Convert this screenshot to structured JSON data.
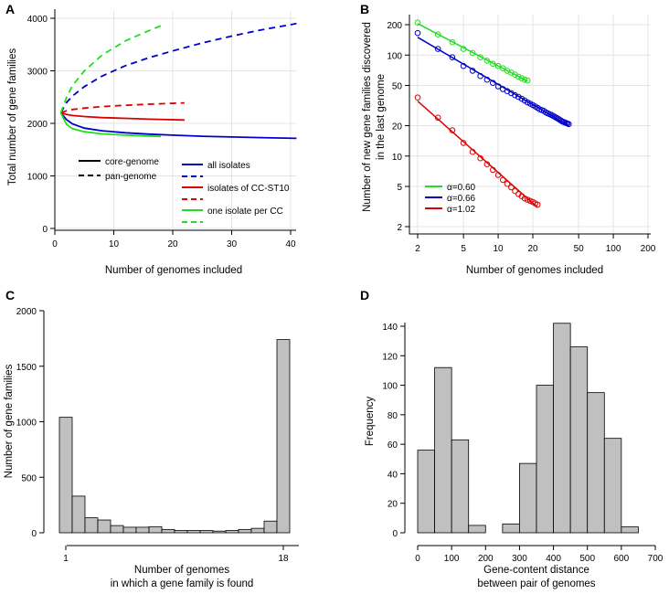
{
  "colors": {
    "all": "#0000cc",
    "cc_st10": "#dd0000",
    "one_per_cc": "#22dd22",
    "black": "#000000"
  },
  "panels": {
    "a": "A",
    "b": "B",
    "c": "C",
    "d": "D"
  },
  "chart_data": [
    {
      "id": "A",
      "type": "line",
      "xlabel": "Number of genomes included",
      "ylabel": "Total number of gene families",
      "xlim": [
        0,
        41
      ],
      "ylim": [
        0,
        4000
      ],
      "xticks": [
        0,
        10,
        20,
        30,
        40
      ],
      "yticks": [
        0,
        1000,
        2000,
        3000,
        4000
      ],
      "grid": true,
      "legend": {
        "style_labels": [
          "core-genome",
          "pan-genome"
        ],
        "color_labels": [
          "all isolates",
          "isolates of CC-ST10",
          "one isolate per CC"
        ]
      },
      "series": [
        {
          "name": "all isolates core-genome",
          "group": "all",
          "kind": "core",
          "x": [
            1,
            2,
            3,
            5,
            8,
            12,
            16,
            20,
            25,
            30,
            35,
            41
          ],
          "y": [
            2200,
            2070,
            1990,
            1910,
            1860,
            1820,
            1795,
            1775,
            1755,
            1740,
            1728,
            1715
          ]
        },
        {
          "name": "all isolates pan-genome",
          "group": "all",
          "kind": "pan",
          "x": [
            1,
            2,
            3,
            5,
            8,
            12,
            16,
            20,
            25,
            30,
            35,
            41
          ],
          "y": [
            2200,
            2400,
            2520,
            2700,
            2900,
            3100,
            3250,
            3380,
            3530,
            3660,
            3780,
            3900
          ]
        },
        {
          "name": "isolates of CC-ST10 core-genome",
          "group": "cc_st10",
          "kind": "core",
          "x": [
            1,
            2,
            3,
            5,
            8,
            12,
            16,
            22
          ],
          "y": [
            2200,
            2170,
            2150,
            2130,
            2110,
            2095,
            2080,
            2065
          ]
        },
        {
          "name": "isolates of CC-ST10 pan-genome",
          "group": "cc_st10",
          "kind": "pan",
          "x": [
            1,
            2,
            3,
            5,
            8,
            12,
            16,
            22
          ],
          "y": [
            2200,
            2240,
            2265,
            2290,
            2320,
            2345,
            2365,
            2390
          ]
        },
        {
          "name": "one isolate per CC core-genome",
          "group": "one_per_cc",
          "kind": "core",
          "x": [
            1,
            2,
            3,
            5,
            8,
            12,
            15,
            18
          ],
          "y": [
            2200,
            1980,
            1900,
            1840,
            1800,
            1775,
            1762,
            1750
          ]
        },
        {
          "name": "one isolate per CC pan-genome",
          "group": "one_per_cc",
          "kind": "pan",
          "x": [
            1,
            2,
            3,
            5,
            8,
            12,
            15,
            18
          ],
          "y": [
            2200,
            2500,
            2720,
            3000,
            3300,
            3570,
            3720,
            3860
          ]
        }
      ]
    },
    {
      "id": "B",
      "type": "scatter",
      "scale": "log-log",
      "xlabel": "Number of genomes included",
      "ylabel_line1": "Number of new gene families discovered",
      "ylabel_line2": "in the last genome",
      "xlim": [
        2,
        200
      ],
      "ylim": [
        2,
        200
      ],
      "xticks": [
        2,
        5,
        10,
        20,
        50,
        100,
        200
      ],
      "yticks": [
        2,
        5,
        10,
        20,
        50,
        100,
        200
      ],
      "grid": true,
      "legend": [
        "α=0.60",
        "α=0.66",
        "α=1.02"
      ],
      "series": [
        {
          "name": "α=0.60",
          "group": "one_per_cc",
          "alpha": 0.6,
          "n_max": 18,
          "fit": {
            "x": [
              2,
              18
            ],
            "y": [
              205,
              55
            ]
          },
          "points": [
            [
              2,
              210
            ],
            [
              3,
              160
            ],
            [
              4,
              134
            ],
            [
              5,
              115
            ],
            [
              6,
              105
            ],
            [
              7,
              95
            ],
            [
              8,
              88
            ],
            [
              9,
              82
            ],
            [
              10,
              78
            ],
            [
              11,
              74
            ],
            [
              12,
              70
            ],
            [
              13,
              67
            ],
            [
              14,
              64
            ],
            [
              15,
              61
            ],
            [
              16,
              59
            ],
            [
              17,
              57
            ],
            [
              18,
              56
            ]
          ]
        },
        {
          "name": "α=0.66",
          "group": "all",
          "alpha": 0.66,
          "n_max": 41,
          "fit": {
            "x": [
              2,
              41
            ],
            "y": [
              150,
              20
            ]
          },
          "points": [
            [
              2,
              165
            ],
            [
              3,
              115
            ],
            [
              4,
              95
            ],
            [
              5,
              78
            ],
            [
              6,
              70
            ],
            [
              7,
              62
            ],
            [
              8,
              57
            ],
            [
              9,
              53
            ],
            [
              10,
              49
            ],
            [
              11,
              46
            ],
            [
              12,
              44
            ],
            [
              13,
              42
            ],
            [
              14,
              40
            ],
            [
              15,
              38.5
            ],
            [
              16,
              37
            ],
            [
              17,
              35.5
            ],
            [
              18,
              34
            ],
            [
              19,
              33
            ],
            [
              20,
              32
            ],
            [
              21,
              31
            ],
            [
              22,
              30
            ],
            [
              23,
              29
            ],
            [
              24,
              28.5
            ],
            [
              25,
              28
            ],
            [
              26,
              27
            ],
            [
              27,
              26.5
            ],
            [
              28,
              26
            ],
            [
              29,
              25.5
            ],
            [
              30,
              25
            ],
            [
              31,
              24.5
            ],
            [
              32,
              24
            ],
            [
              33,
              23.5
            ],
            [
              34,
              23
            ],
            [
              35,
              22.5
            ],
            [
              36,
              22
            ],
            [
              37,
              21.8
            ],
            [
              38,
              21.5
            ],
            [
              39,
              21.2
            ],
            [
              40,
              21
            ],
            [
              41,
              20.7
            ]
          ]
        },
        {
          "name": "α=1.02",
          "group": "cc_st10",
          "alpha": 1.02,
          "n_max": 22,
          "fit": {
            "x": [
              2,
              22
            ],
            "y": [
              35,
              3.1
            ]
          },
          "points": [
            [
              2,
              38
            ],
            [
              3,
              24
            ],
            [
              4,
              18
            ],
            [
              5,
              13.5
            ],
            [
              6,
              11
            ],
            [
              7,
              9.5
            ],
            [
              8,
              8.3
            ],
            [
              9,
              7.3
            ],
            [
              10,
              6.5
            ],
            [
              11,
              5.8
            ],
            [
              12,
              5.3
            ],
            [
              13,
              4.9
            ],
            [
              14,
              4.5
            ],
            [
              15,
              4.2
            ],
            [
              16,
              4.0
            ],
            [
              17,
              3.8
            ],
            [
              18,
              3.7
            ],
            [
              19,
              3.6
            ],
            [
              20,
              3.5
            ],
            [
              21,
              3.4
            ],
            [
              22,
              3.3
            ]
          ]
        }
      ]
    },
    {
      "id": "C",
      "type": "bar",
      "xlabel_line1": "Number of genomes",
      "xlabel_line2": "in which a gene family is found",
      "ylabel": "Number of gene families",
      "xticks": [
        "1",
        "18"
      ],
      "ylim": [
        0,
        2000
      ],
      "yticks": [
        0,
        500,
        1000,
        1500,
        2000
      ],
      "categories": [
        1,
        2,
        3,
        4,
        5,
        6,
        7,
        8,
        9,
        10,
        11,
        12,
        13,
        14,
        15,
        16,
        17,
        18
      ],
      "values": [
        1040,
        330,
        135,
        115,
        65,
        50,
        50,
        55,
        30,
        20,
        20,
        20,
        15,
        20,
        30,
        40,
        105,
        1740
      ]
    },
    {
      "id": "D",
      "type": "bar",
      "xlabel_line1": "Gene-content distance",
      "xlabel_line2": "between pair of genomes",
      "ylabel": "Frequency",
      "xlim": [
        0,
        700
      ],
      "xticks": [
        0,
        100,
        200,
        300,
        400,
        500,
        600,
        700
      ],
      "ylim": [
        0,
        140
      ],
      "yticks": [
        0,
        20,
        40,
        60,
        80,
        100,
        120,
        140
      ],
      "bins": [
        [
          0,
          50
        ],
        [
          50,
          100
        ],
        [
          100,
          150
        ],
        [
          150,
          200
        ],
        [
          200,
          250
        ],
        [
          250,
          300
        ],
        [
          300,
          350
        ],
        [
          350,
          400
        ],
        [
          400,
          450
        ],
        [
          450,
          500
        ],
        [
          500,
          550
        ],
        [
          550,
          600
        ],
        [
          600,
          650
        ]
      ],
      "values": [
        56,
        112,
        63,
        5,
        0,
        6,
        47,
        100,
        142,
        126,
        95,
        64,
        4
      ]
    }
  ]
}
